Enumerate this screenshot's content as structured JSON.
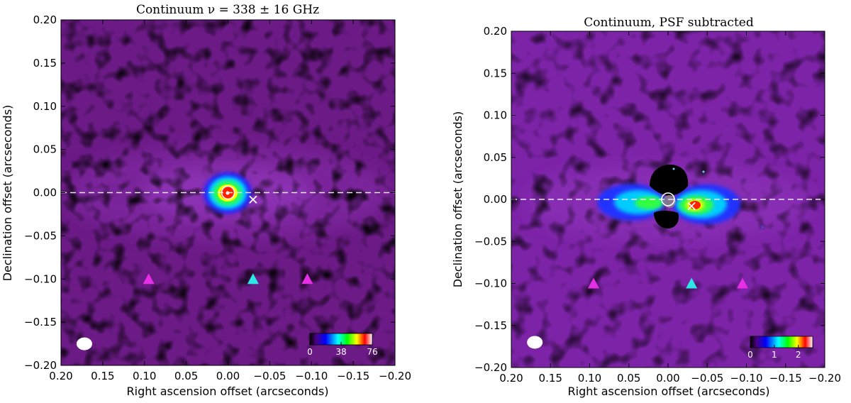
{
  "chart_data": [
    {
      "type": "heatmap",
      "title": "Continuum ν = 338 ± 16 GHz",
      "xlabel": "Right ascension offset (arcseconds)",
      "ylabel": "Declination offset (arcseconds)",
      "xlim": [
        0.2,
        -0.2
      ],
      "ylim": [
        -0.2,
        0.2
      ],
      "xticks": [
        0.2,
        0.15,
        0.1,
        0.05,
        0.0,
        -0.05,
        -0.1,
        -0.15,
        -0.2
      ],
      "xtick_labels": [
        "0.20",
        "0.15",
        "0.10",
        "0.05",
        "0.00",
        "−0.05",
        "−0.10",
        "−0.15",
        "−0.20"
      ],
      "yticks": [
        0.2,
        0.15,
        0.1,
        0.05,
        0.0,
        -0.05,
        -0.1,
        -0.15,
        -0.2
      ],
      "ytick_labels": [
        "0.20",
        "0.15",
        "0.10",
        "0.05",
        "0.00",
        "−0.05",
        "−0.10",
        "−0.15",
        "−0.20"
      ],
      "colorbar": {
        "min": 0,
        "max": 76,
        "tick_values": [
          0,
          38,
          76
        ],
        "tick_labels": [
          "0",
          "38",
          "76"
        ]
      },
      "midplane_y": 0.0,
      "markers": [
        {
          "kind": "triangle",
          "x": 0.095,
          "y": -0.1,
          "color": "#e52ee5"
        },
        {
          "kind": "triangle",
          "x": -0.03,
          "y": -0.1,
          "color": "#2ee6e6"
        },
        {
          "kind": "triangle",
          "x": -0.095,
          "y": -0.1,
          "color": "#e52ee5"
        },
        {
          "kind": "cross",
          "x": -0.03,
          "y": -0.008,
          "color": "#ffffff"
        },
        {
          "kind": "ring",
          "x": 0.0,
          "y": 0.0,
          "color": "#ffffff"
        }
      ],
      "beam": {
        "x": 0.172,
        "y": -0.175
      }
    },
    {
      "type": "heatmap",
      "title": "Continuum, PSF subtracted",
      "xlabel": "Right ascension offset (arcseconds)",
      "ylabel": "Declination offset (arcseconds)",
      "xlim": [
        0.2,
        -0.2
      ],
      "ylim": [
        -0.2,
        0.2
      ],
      "xticks": [
        0.2,
        0.15,
        0.1,
        0.05,
        0.0,
        -0.05,
        -0.1,
        -0.15,
        -0.2
      ],
      "xtick_labels": [
        "0.20",
        "0.15",
        "0.10",
        "0.05",
        "0.00",
        "−0.05",
        "−0.10",
        "−0.15",
        "−0.20"
      ],
      "yticks": [
        0.2,
        0.15,
        0.1,
        0.05,
        0.0,
        -0.05,
        -0.1,
        -0.15,
        -0.2
      ],
      "ytick_labels": [
        "0.20",
        "0.15",
        "0.10",
        "0.05",
        "0.00",
        "−0.05",
        "−0.10",
        "−0.15",
        "−0.20"
      ],
      "colorbar": {
        "min": 0,
        "max": 2.6,
        "tick_values": [
          0,
          1,
          2
        ],
        "tick_labels": [
          "0",
          "1",
          "2"
        ]
      },
      "midplane_y": 0.0,
      "markers": [
        {
          "kind": "triangle",
          "x": 0.095,
          "y": -0.1,
          "color": "#e52ee5"
        },
        {
          "kind": "triangle",
          "x": -0.03,
          "y": -0.1,
          "color": "#2ee6e6"
        },
        {
          "kind": "triangle",
          "x": -0.095,
          "y": -0.1,
          "color": "#e52ee5"
        },
        {
          "kind": "cross",
          "x": -0.03,
          "y": -0.008,
          "color": "#ffffff"
        },
        {
          "kind": "ring",
          "x": 0.0,
          "y": 0.0,
          "color": "#ffffff"
        }
      ],
      "beam": {
        "x": 0.17,
        "y": -0.17
      }
    }
  ]
}
